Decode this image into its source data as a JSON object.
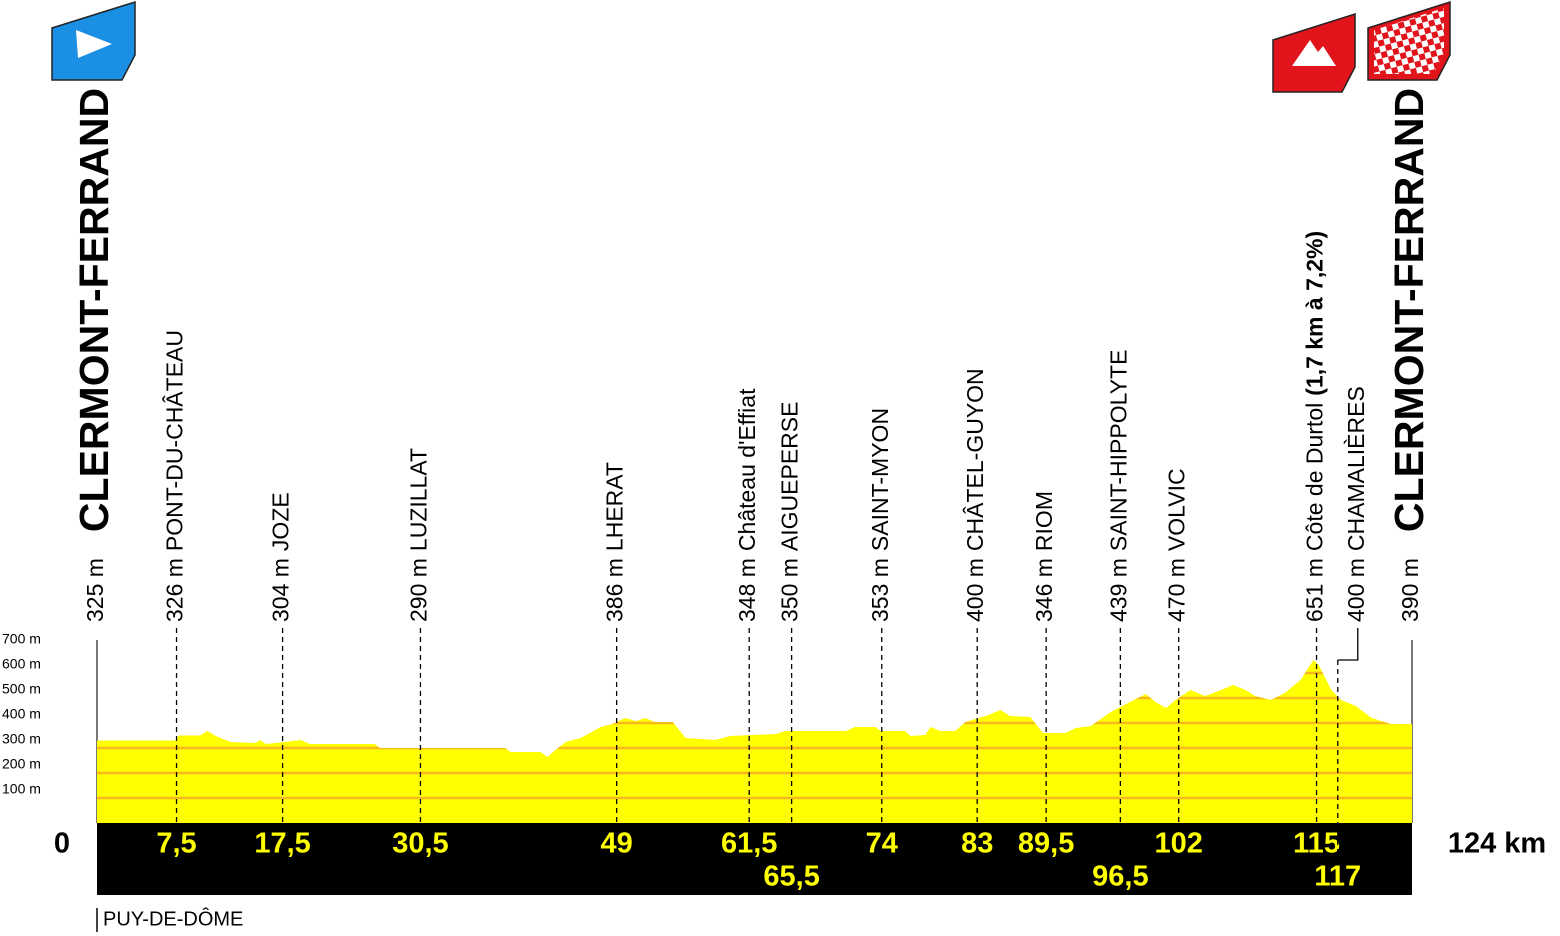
{
  "chart_data": {
    "type": "elevation_profile",
    "region": "PUY-DE-DÔME",
    "x": [
      0,
      7.4,
      7.7,
      9.7,
      10.4,
      11.2,
      12.6,
      14.9,
      15.4,
      15.9,
      17.7,
      19.2,
      20.1,
      26.2,
      26.7,
      38.5,
      39,
      41.8,
      42.5,
      43,
      44.2,
      45.6,
      47.5,
      48.6,
      49.8,
      50.8,
      51.7,
      52.6,
      54.3,
      55.5,
      58.3,
      59.7,
      64,
      64.9,
      70.6,
      71.5,
      73.4,
      73.9,
      76.2,
      76.7,
      78.1,
      78.6,
      79.5,
      80.9,
      81.9,
      83.8,
      85.2,
      86.1,
      88,
      89.2,
      91.3,
      92.3,
      93.7,
      95.6,
      97.4,
      98.9,
      99.8,
      100.8,
      101.7,
      103.1,
      104.5,
      106,
      107.1,
      108.3,
      109.2,
      110.7,
      112,
      113.5,
      114.7,
      115.2,
      116.4,
      117.3,
      118.7,
      120.2,
      122,
      124
    ],
    "values": [
      330,
      330,
      350,
      350,
      368,
      348,
      324,
      320,
      332,
      316,
      324,
      332,
      316,
      316,
      300,
      300,
      284,
      284,
      264,
      284,
      324,
      340,
      384,
      396,
      420,
      408,
      420,
      404,
      404,
      340,
      332,
      348,
      356,
      368,
      368,
      384,
      384,
      368,
      368,
      348,
      352,
      384,
      368,
      368,
      404,
      428,
      452,
      428,
      424,
      360,
      360,
      380,
      388,
      444,
      484,
      516,
      484,
      460,
      492,
      532,
      508,
      532,
      552,
      532,
      508,
      492,
      520,
      572,
      652,
      632,
      532,
      492,
      468,
      420,
      396,
      396
    ],
    "color": "#ffff00",
    "grid": true,
    "grid_color": "#f5a623",
    "xlim": [
      0,
      124
    ],
    "ylim": [
      0,
      740
    ],
    "yticks": [
      {
        "value": 100,
        "label": "100 m"
      },
      {
        "value": 200,
        "label": "200 m"
      },
      {
        "value": 300,
        "label": "300 m"
      },
      {
        "value": 400,
        "label": "400 m"
      },
      {
        "value": 500,
        "label": "500 m"
      },
      {
        "value": 600,
        "label": "600 m"
      },
      {
        "value": 700,
        "label": "700 m"
      }
    ],
    "waypoints": [
      {
        "km": {
          "value": 0,
          "label": "0"
        },
        "elevation": {
          "value": 325,
          "label": "325 m"
        },
        "name": "CLERMONT-FERRAND"
      },
      {
        "km": {
          "value": 7.5,
          "label": "7,5"
        },
        "elevation": {
          "value": 326,
          "label": "326 m"
        },
        "name": "PONT-DU-CHÂTEAU"
      },
      {
        "km": {
          "value": 17.5,
          "label": "17,5"
        },
        "elevation": {
          "value": 304,
          "label": "304 m"
        },
        "name": "JOZE"
      },
      {
        "km": {
          "value": 30.5,
          "label": "30,5"
        },
        "elevation": {
          "value": 290,
          "label": "290 m"
        },
        "name": "LUZILLAT"
      },
      {
        "km": {
          "value": 49,
          "label": "49"
        },
        "elevation": {
          "value": 386,
          "label": "386 m"
        },
        "name": "LHERAT"
      },
      {
        "km": {
          "value": 61.5,
          "label": "61,5"
        },
        "elevation": {
          "value": 348,
          "label": "348 m"
        },
        "name": "Château d'Effiat"
      },
      {
        "km": {
          "value": 65.5,
          "label": "65,5"
        },
        "elevation": {
          "value": 350,
          "label": "350 m"
        },
        "name": "AIGUEPERSE"
      },
      {
        "km": {
          "value": 74,
          "label": "74"
        },
        "elevation": {
          "value": 353,
          "label": "353 m"
        },
        "name": "SAINT-MYON"
      },
      {
        "km": {
          "value": 83,
          "label": "83"
        },
        "elevation": {
          "value": 400,
          "label": "400 m"
        },
        "name": "CHÂTEL-GUYON"
      },
      {
        "km": {
          "value": 89.5,
          "label": "89,5"
        },
        "elevation": {
          "value": 346,
          "label": "346 m"
        },
        "name": "RIOM"
      },
      {
        "km": {
          "value": 96.5,
          "label": "96,5"
        },
        "elevation": {
          "value": 439,
          "label": "439 m"
        },
        "name": "SAINT-HIPPOLYTE"
      },
      {
        "km": {
          "value": 102,
          "label": "102"
        },
        "elevation": {
          "value": 470,
          "label": "470 m"
        },
        "name": "VOLVIC"
      },
      {
        "km": {
          "value": 115,
          "label": "115"
        },
        "elevation": {
          "value": 651,
          "label": "651 m"
        },
        "name": "Côte de Durtol",
        "climb": "(1,7 km à 7,2%)"
      },
      {
        "km": {
          "value": 117,
          "label": "117"
        },
        "elevation": {
          "value": 400,
          "label": "400 m"
        },
        "name": "CHAMALIÈRES"
      },
      {
        "km": {
          "value": 124,
          "label": "124 km"
        },
        "elevation": {
          "value": 390,
          "label": "390 m"
        },
        "name": "CLERMONT-FERRAND"
      }
    ]
  }
}
